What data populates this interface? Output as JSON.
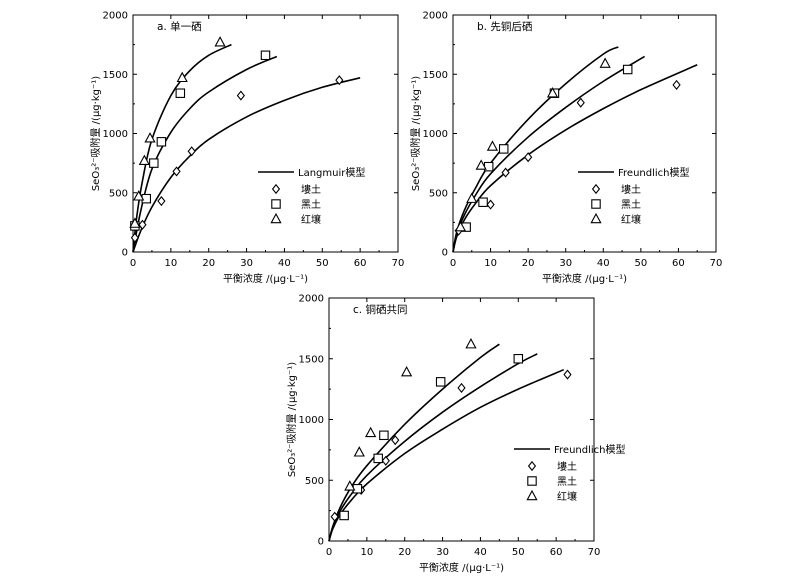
{
  "chart_data": [
    {
      "type": "scatter",
      "title": "a. 单一硒",
      "xlabel": "平衡浓度 /(μg·L⁻¹)",
      "ylabel": "SeO₃²⁻吸附量 /(μg·kg⁻¹)",
      "xlim": [
        0,
        70
      ],
      "ylim": [
        0,
        2000
      ],
      "xticks": [
        0,
        10,
        20,
        30,
        40,
        50,
        60,
        70
      ],
      "yticks": [
        0,
        500,
        1000,
        1500,
        2000
      ],
      "legend": {
        "placement": "bottom-right",
        "line_label": "Langmuir模型"
      },
      "series": [
        {
          "name": "塿土",
          "marker": "diamond",
          "points": [
            [
              0.5,
              120
            ],
            [
              2.5,
              230
            ],
            [
              7.5,
              430
            ],
            [
              11.5,
              680
            ],
            [
              15.5,
              850
            ],
            [
              28.5,
              1320
            ],
            [
              54.5,
              1450
            ]
          ],
          "fit": [
            [
              0,
              0
            ],
            [
              2,
              175
            ],
            [
              5,
              380
            ],
            [
              10,
              630
            ],
            [
              15,
              810
            ],
            [
              20,
              950
            ],
            [
              30,
              1140
            ],
            [
              40,
              1280
            ],
            [
              50,
              1390
            ],
            [
              60,
              1470
            ]
          ]
        },
        {
          "name": "黑土",
          "marker": "square",
          "points": [
            [
              0.5,
              220
            ],
            [
              3.5,
              450
            ],
            [
              5.5,
              750
            ],
            [
              7.5,
              930
            ],
            [
              12.5,
              1340
            ],
            [
              35,
              1660
            ]
          ],
          "fit": [
            [
              0,
              0
            ],
            [
              2,
              340
            ],
            [
              5,
              700
            ],
            [
              10,
              1010
            ],
            [
              15,
              1210
            ],
            [
              20,
              1350
            ],
            [
              30,
              1540
            ],
            [
              38,
              1650
            ]
          ]
        },
        {
          "name": "红壤",
          "marker": "triangle",
          "points": [
            [
              0.5,
              240
            ],
            [
              1.5,
              470
            ],
            [
              3.0,
              770
            ],
            [
              4.5,
              960
            ],
            [
              13,
              1470
            ],
            [
              23,
              1770
            ]
          ],
          "fit": [
            [
              0,
              0
            ],
            [
              1,
              300
            ],
            [
              2.5,
              600
            ],
            [
              5,
              950
            ],
            [
              10,
              1320
            ],
            [
              15,
              1530
            ],
            [
              20,
              1660
            ],
            [
              26,
              1750
            ]
          ]
        }
      ]
    },
    {
      "type": "scatter",
      "title": "b. 先铜后硒",
      "xlabel": "平衡浓度 /(μg·L⁻¹)",
      "ylabel": "SeO₃²⁻吸附量 /(μg·kg⁻¹)",
      "xlim": [
        0,
        70
      ],
      "ylim": [
        0,
        2000
      ],
      "xticks": [
        0,
        10,
        20,
        30,
        40,
        50,
        60,
        70
      ],
      "yticks": [
        0,
        500,
        1000,
        1500,
        2000
      ],
      "legend": {
        "placement": "bottom-right",
        "line_label": "Freundlich模型"
      },
      "series": [
        {
          "name": "塿土",
          "marker": "diamond",
          "points": [
            [
              1.5,
              180
            ],
            [
              10,
              400
            ],
            [
              14,
              670
            ],
            [
              20,
              800
            ],
            [
              34,
              1260
            ],
            [
              59.5,
              1410
            ]
          ],
          "fit": [
            [
              0,
              0
            ],
            [
              1,
              130
            ],
            [
              3,
              270
            ],
            [
              6,
              410
            ],
            [
              10,
              560
            ],
            [
              20,
              820
            ],
            [
              30,
              1030
            ],
            [
              40,
              1210
            ],
            [
              50,
              1370
            ],
            [
              65,
              1580
            ]
          ]
        },
        {
          "name": "黑土",
          "marker": "square",
          "points": [
            [
              3.5,
              210
            ],
            [
              8,
              420
            ],
            [
              9.5,
              720
            ],
            [
              13.5,
              870
            ],
            [
              27,
              1340
            ],
            [
              46.5,
              1540
            ]
          ],
          "fit": [
            [
              0,
              0
            ],
            [
              1,
              150
            ],
            [
              3,
              310
            ],
            [
              6,
              480
            ],
            [
              10,
              660
            ],
            [
              20,
              970
            ],
            [
              30,
              1220
            ],
            [
              40,
              1440
            ],
            [
              51,
              1650
            ]
          ]
        },
        {
          "name": "红壤",
          "marker": "triangle",
          "points": [
            [
              2,
              210
            ],
            [
              5,
              450
            ],
            [
              7.5,
              730
            ],
            [
              10.5,
              890
            ],
            [
              26.5,
              1340
            ],
            [
              40.5,
              1590
            ]
          ],
          "fit": [
            [
              0,
              0
            ],
            [
              1,
              170
            ],
            [
              3,
              350
            ],
            [
              6,
              540
            ],
            [
              10,
              750
            ],
            [
              20,
              1120
            ],
            [
              30,
              1420
            ],
            [
              40,
              1670
            ],
            [
              44,
              1730
            ]
          ]
        }
      ]
    },
    {
      "type": "scatter",
      "title": "c. 铜硒共同",
      "xlabel": "平衡浓度 /(μg·L⁻¹)",
      "ylabel": "SeO₃²⁻吸附量 /(μg·kg⁻¹)",
      "xlim": [
        0,
        70
      ],
      "ylim": [
        0,
        2000
      ],
      "xticks": [
        0,
        10,
        20,
        30,
        40,
        50,
        60,
        70
      ],
      "yticks": [
        0,
        500,
        1000,
        1500,
        2000
      ],
      "legend": {
        "placement": "bottom-right",
        "line_label": "Freundlich模型"
      },
      "series": [
        {
          "name": "塿土",
          "marker": "diamond",
          "points": [
            [
              1.5,
              200
            ],
            [
              8.5,
              420
            ],
            [
              15,
              660
            ],
            [
              17.5,
              830
            ],
            [
              35,
              1260
            ],
            [
              63,
              1370
            ]
          ],
          "fit": [
            [
              0,
              0
            ],
            [
              1,
              100
            ],
            [
              3,
              220
            ],
            [
              6,
              340
            ],
            [
              10,
              470
            ],
            [
              20,
              720
            ],
            [
              30,
              920
            ],
            [
              40,
              1100
            ],
            [
              50,
              1250
            ],
            [
              62,
              1410
            ]
          ]
        },
        {
          "name": "黑土",
          "marker": "square",
          "points": [
            [
              4,
              210
            ],
            [
              7.5,
              430
            ],
            [
              13,
              680
            ],
            [
              14.5,
              870
            ],
            [
              29.5,
              1310
            ],
            [
              50,
              1500
            ]
          ],
          "fit": [
            [
              0,
              0
            ],
            [
              1,
              110
            ],
            [
              3,
              250
            ],
            [
              6,
              390
            ],
            [
              10,
              540
            ],
            [
              20,
              820
            ],
            [
              30,
              1060
            ],
            [
              40,
              1270
            ],
            [
              50,
              1460
            ],
            [
              55,
              1540
            ]
          ]
        },
        {
          "name": "红壤",
          "marker": "triangle",
          "points": [
            [
              5.5,
              450
            ],
            [
              8,
              730
            ],
            [
              11,
              890
            ],
            [
              20.5,
              1390
            ],
            [
              37.5,
              1620
            ]
          ],
          "fit": [
            [
              0,
              0
            ],
            [
              1,
              120
            ],
            [
              3,
              280
            ],
            [
              6,
              450
            ],
            [
              10,
              620
            ],
            [
              20,
              960
            ],
            [
              30,
              1250
            ],
            [
              40,
              1510
            ],
            [
              45,
              1620
            ]
          ]
        }
      ]
    }
  ]
}
